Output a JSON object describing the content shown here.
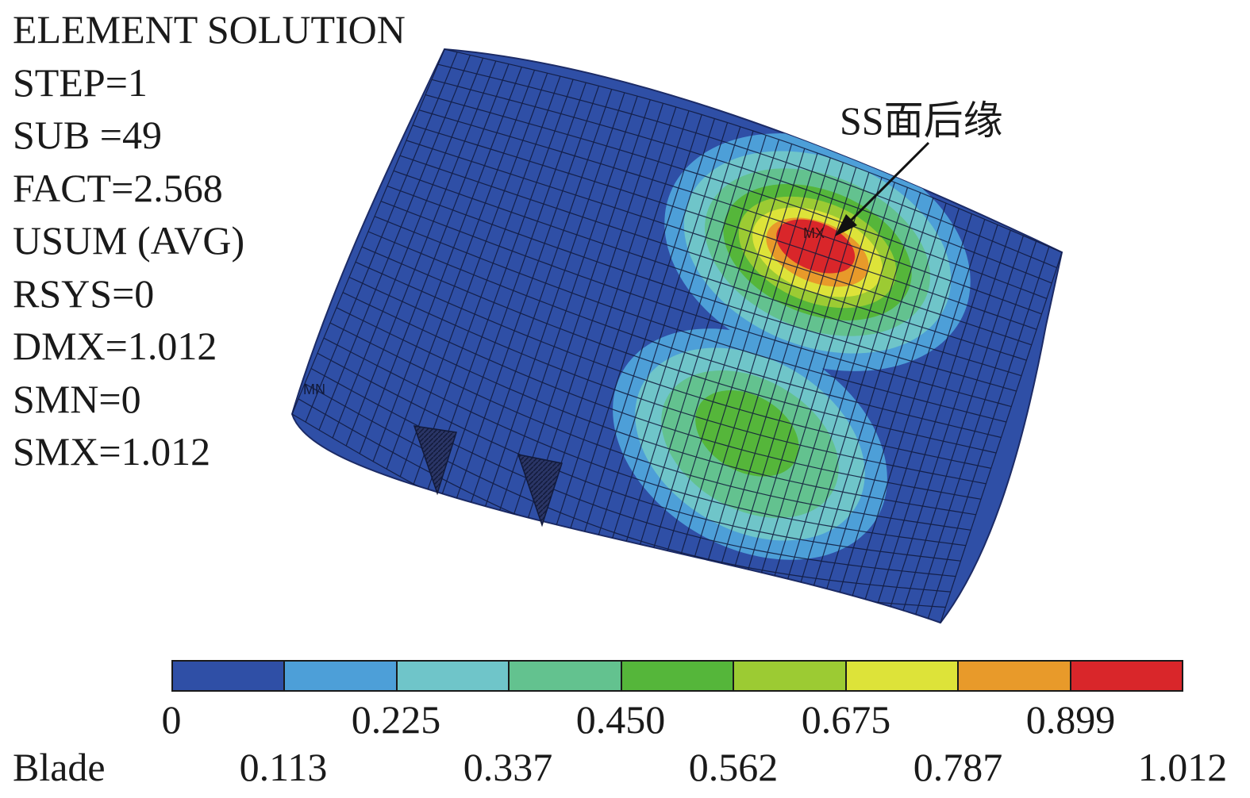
{
  "info_lines": [
    "ELEMENT SOLUTION",
    "STEP=1",
    "SUB =49",
    "FACT=2.568",
    "USUM (AVG)",
    "RSYS=0",
    "DMX=1.012",
    "SMN=0",
    "SMX=1.012"
  ],
  "annotation": "SS面后缘",
  "markers": {
    "max": "MX",
    "min": "MN"
  },
  "legend": {
    "colors": [
      "#2f4fa6",
      "#4d9fd8",
      "#6fc5c9",
      "#63c28f",
      "#55b63a",
      "#9ccb33",
      "#dde339",
      "#e89a2a",
      "#d9262a"
    ],
    "values_top": [
      "0",
      "0.225",
      "0.450",
      "0.675",
      "0.899"
    ],
    "values_bottom": [
      "0.113",
      "0.337",
      "0.562",
      "0.787",
      "1.012"
    ],
    "label": "Blade"
  }
}
